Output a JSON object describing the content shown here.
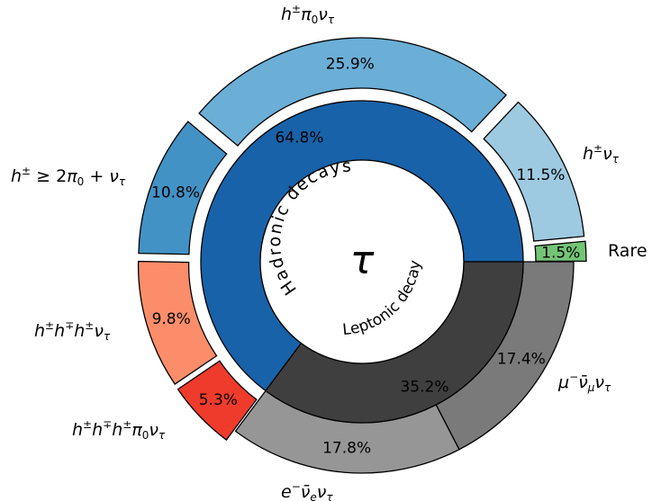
{
  "chart_data": {
    "type": "pie",
    "center_label": "τ",
    "inner": [
      {
        "name": "Hadronic decays",
        "value": 64.8,
        "label": "64.8%",
        "color": "#1862a9"
      },
      {
        "name": "Leptonic decay",
        "value": 35.2,
        "label": "35.2%",
        "color": "#3f3f3f"
      }
    ],
    "outer": [
      {
        "name": "Rare",
        "value": 1.5,
        "label": "1.5%",
        "color": "#74c476",
        "group": "Hadronic decays",
        "exploded": true
      },
      {
        "name": "h±ντ",
        "value": 11.5,
        "label": "11.5%",
        "color": "#9ecae1",
        "group": "Hadronic decays",
        "exploded": true
      },
      {
        "name": "h±π0ντ",
        "value": 25.9,
        "label": "25.9%",
        "color": "#6baed6",
        "group": "Hadronic decays",
        "exploded": true
      },
      {
        "name": "h± ≥ 2π0 + ντ",
        "value": 10.8,
        "label": "10.8%",
        "color": "#4292c6",
        "group": "Hadronic decays",
        "exploded": true
      },
      {
        "name": "h±h∓h±ντ",
        "value": 9.8,
        "label": "9.8%",
        "color": "#fc8d6a",
        "group": "Hadronic decays",
        "exploded": true
      },
      {
        "name": "h±h∓h±π0ντ",
        "value": 5.3,
        "label": "5.3%",
        "color": "#ef3b2c",
        "group": "Hadronic decays",
        "exploded": true
      },
      {
        "name": "e−ν̄eντ",
        "value": 17.8,
        "label": "17.8%",
        "color": "#969696",
        "group": "Leptonic decay",
        "exploded": false
      },
      {
        "name": "μ−ν̄μντ",
        "value": 17.4,
        "label": "17.4%",
        "color": "#7a7a7a",
        "group": "Leptonic decay",
        "exploded": false
      }
    ]
  }
}
